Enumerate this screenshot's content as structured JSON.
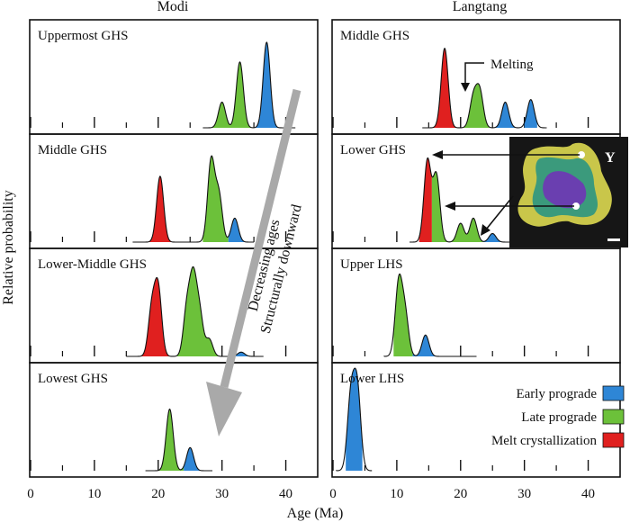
{
  "columns": [
    "Modi",
    "Langtang"
  ],
  "ylabel": "Relative probability",
  "xlabel": "Age (Ma)",
  "xticks": [
    0,
    10,
    20,
    30,
    40
  ],
  "xlim": [
    0,
    45
  ],
  "legend": [
    {
      "label": "Early prograde",
      "color": "#2e86d6"
    },
    {
      "label": "Late prograde",
      "color": "#6cc13a"
    },
    {
      "label": "Melt crystallization",
      "color": "#e0201f"
    }
  ],
  "arrow_text": [
    "Decreasing ages",
    "Structurally downward"
  ],
  "melting_label": "Melting",
  "inset_label": "Y",
  "chart_data": [
    {
      "type": "area",
      "column": "Modi",
      "row": 0,
      "label": "Uppermost GHS",
      "peaks": [
        {
          "x": 30,
          "y": 0.3
        },
        {
          "x": 32.8,
          "y": 0.77
        },
        {
          "x": 37,
          "y": 1.0
        }
      ],
      "segments": [
        {
          "from": 28.5,
          "to": 35,
          "phase": "Late prograde"
        },
        {
          "from": 35,
          "to": 40,
          "phase": "Early prograde"
        }
      ]
    },
    {
      "type": "area",
      "column": "Modi",
      "row": 1,
      "label": "Middle GHS",
      "peaks": [
        {
          "x": 20.3,
          "y": 0.77
        },
        {
          "x": 28.3,
          "y": 0.95
        },
        {
          "x": 29.5,
          "y": 0.55
        },
        {
          "x": 32,
          "y": 0.28
        }
      ],
      "segments": [
        {
          "from": 17.5,
          "to": 23,
          "phase": "Melt crystallization"
        },
        {
          "from": 27,
          "to": 31,
          "phase": "Late prograde"
        },
        {
          "from": 31,
          "to": 33.5,
          "phase": "Early prograde"
        }
      ]
    },
    {
      "type": "area",
      "column": "Modi",
      "row": 2,
      "label": "Lower-Middle GHS",
      "peaks": [
        {
          "x": 19,
          "y": 0.55
        },
        {
          "x": 20,
          "y": 0.78
        },
        {
          "x": 24.5,
          "y": 0.55
        },
        {
          "x": 25.5,
          "y": 0.85
        },
        {
          "x": 26.5,
          "y": 0.48
        },
        {
          "x": 28,
          "y": 0.2
        },
        {
          "x": 33,
          "y": 0.05
        }
      ],
      "segments": [
        {
          "from": 16.5,
          "to": 22,
          "phase": "Melt crystallization"
        },
        {
          "from": 23,
          "to": 31,
          "phase": "Late prograde"
        },
        {
          "from": 31,
          "to": 35,
          "phase": "Early prograde"
        }
      ]
    },
    {
      "type": "area",
      "column": "Modi",
      "row": 3,
      "label": "Lowest GHS",
      "peaks": [
        {
          "x": 21.8,
          "y": 0.72
        },
        {
          "x": 25,
          "y": 0.27
        }
      ],
      "segments": [
        {
          "from": 19.5,
          "to": 24,
          "phase": "Late prograde"
        },
        {
          "from": 24,
          "to": 27,
          "phase": "Early prograde"
        }
      ]
    },
    {
      "type": "area",
      "column": "Langtang",
      "row": 0,
      "label": "Middle GHS",
      "peaks": [
        {
          "x": 17.5,
          "y": 0.93
        },
        {
          "x": 22,
          "y": 0.35
        },
        {
          "x": 23,
          "y": 0.42
        },
        {
          "x": 27,
          "y": 0.3
        },
        {
          "x": 31,
          "y": 0.33
        }
      ],
      "segments": [
        {
          "from": 15.5,
          "to": 19.8,
          "phase": "Melt crystallization"
        },
        {
          "from": 20.5,
          "to": 24.5,
          "phase": "Late prograde"
        },
        {
          "from": 25,
          "to": 29,
          "phase": "Early prograde"
        },
        {
          "from": 30,
          "to": 32,
          "phase": "Early prograde"
        }
      ]
    },
    {
      "type": "area",
      "column": "Langtang",
      "row": 1,
      "label": "Lower GHS",
      "peaks": [
        {
          "x": 14.8,
          "y": 0.95
        },
        {
          "x": 16.2,
          "y": 0.78
        },
        {
          "x": 20,
          "y": 0.22
        },
        {
          "x": 22,
          "y": 0.28
        },
        {
          "x": 25,
          "y": 0.1
        },
        {
          "x": 30,
          "y": 0.08
        },
        {
          "x": 32,
          "y": 0.08
        },
        {
          "x": 34.5,
          "y": 0.08
        },
        {
          "x": 36,
          "y": 0.07
        }
      ],
      "segments": [
        {
          "from": 13.5,
          "to": 15.5,
          "phase": "Melt crystallization"
        },
        {
          "from": 15.5,
          "to": 23.5,
          "phase": "Late prograde"
        },
        {
          "from": 23.5,
          "to": 37,
          "phase": "Early prograde"
        }
      ]
    },
    {
      "type": "area",
      "column": "Langtang",
      "row": 2,
      "label": "Upper LHS",
      "peaks": [
        {
          "x": 10.3,
          "y": 0.85
        },
        {
          "x": 11.3,
          "y": 0.48
        },
        {
          "x": 14.5,
          "y": 0.25
        }
      ],
      "segments": [
        {
          "from": 9.5,
          "to": 12.5,
          "phase": "Late prograde"
        },
        {
          "from": 12.5,
          "to": 21,
          "phase": "Early prograde"
        }
      ]
    },
    {
      "type": "area",
      "column": "Langtang",
      "row": 3,
      "label": "Lower LHS",
      "peaks": [
        {
          "x": 2.8,
          "y": 0.85
        },
        {
          "x": 3.8,
          "y": 0.95
        }
      ],
      "segments": [
        {
          "from": 2,
          "to": 4.6,
          "phase": "Early prograde"
        }
      ]
    }
  ]
}
